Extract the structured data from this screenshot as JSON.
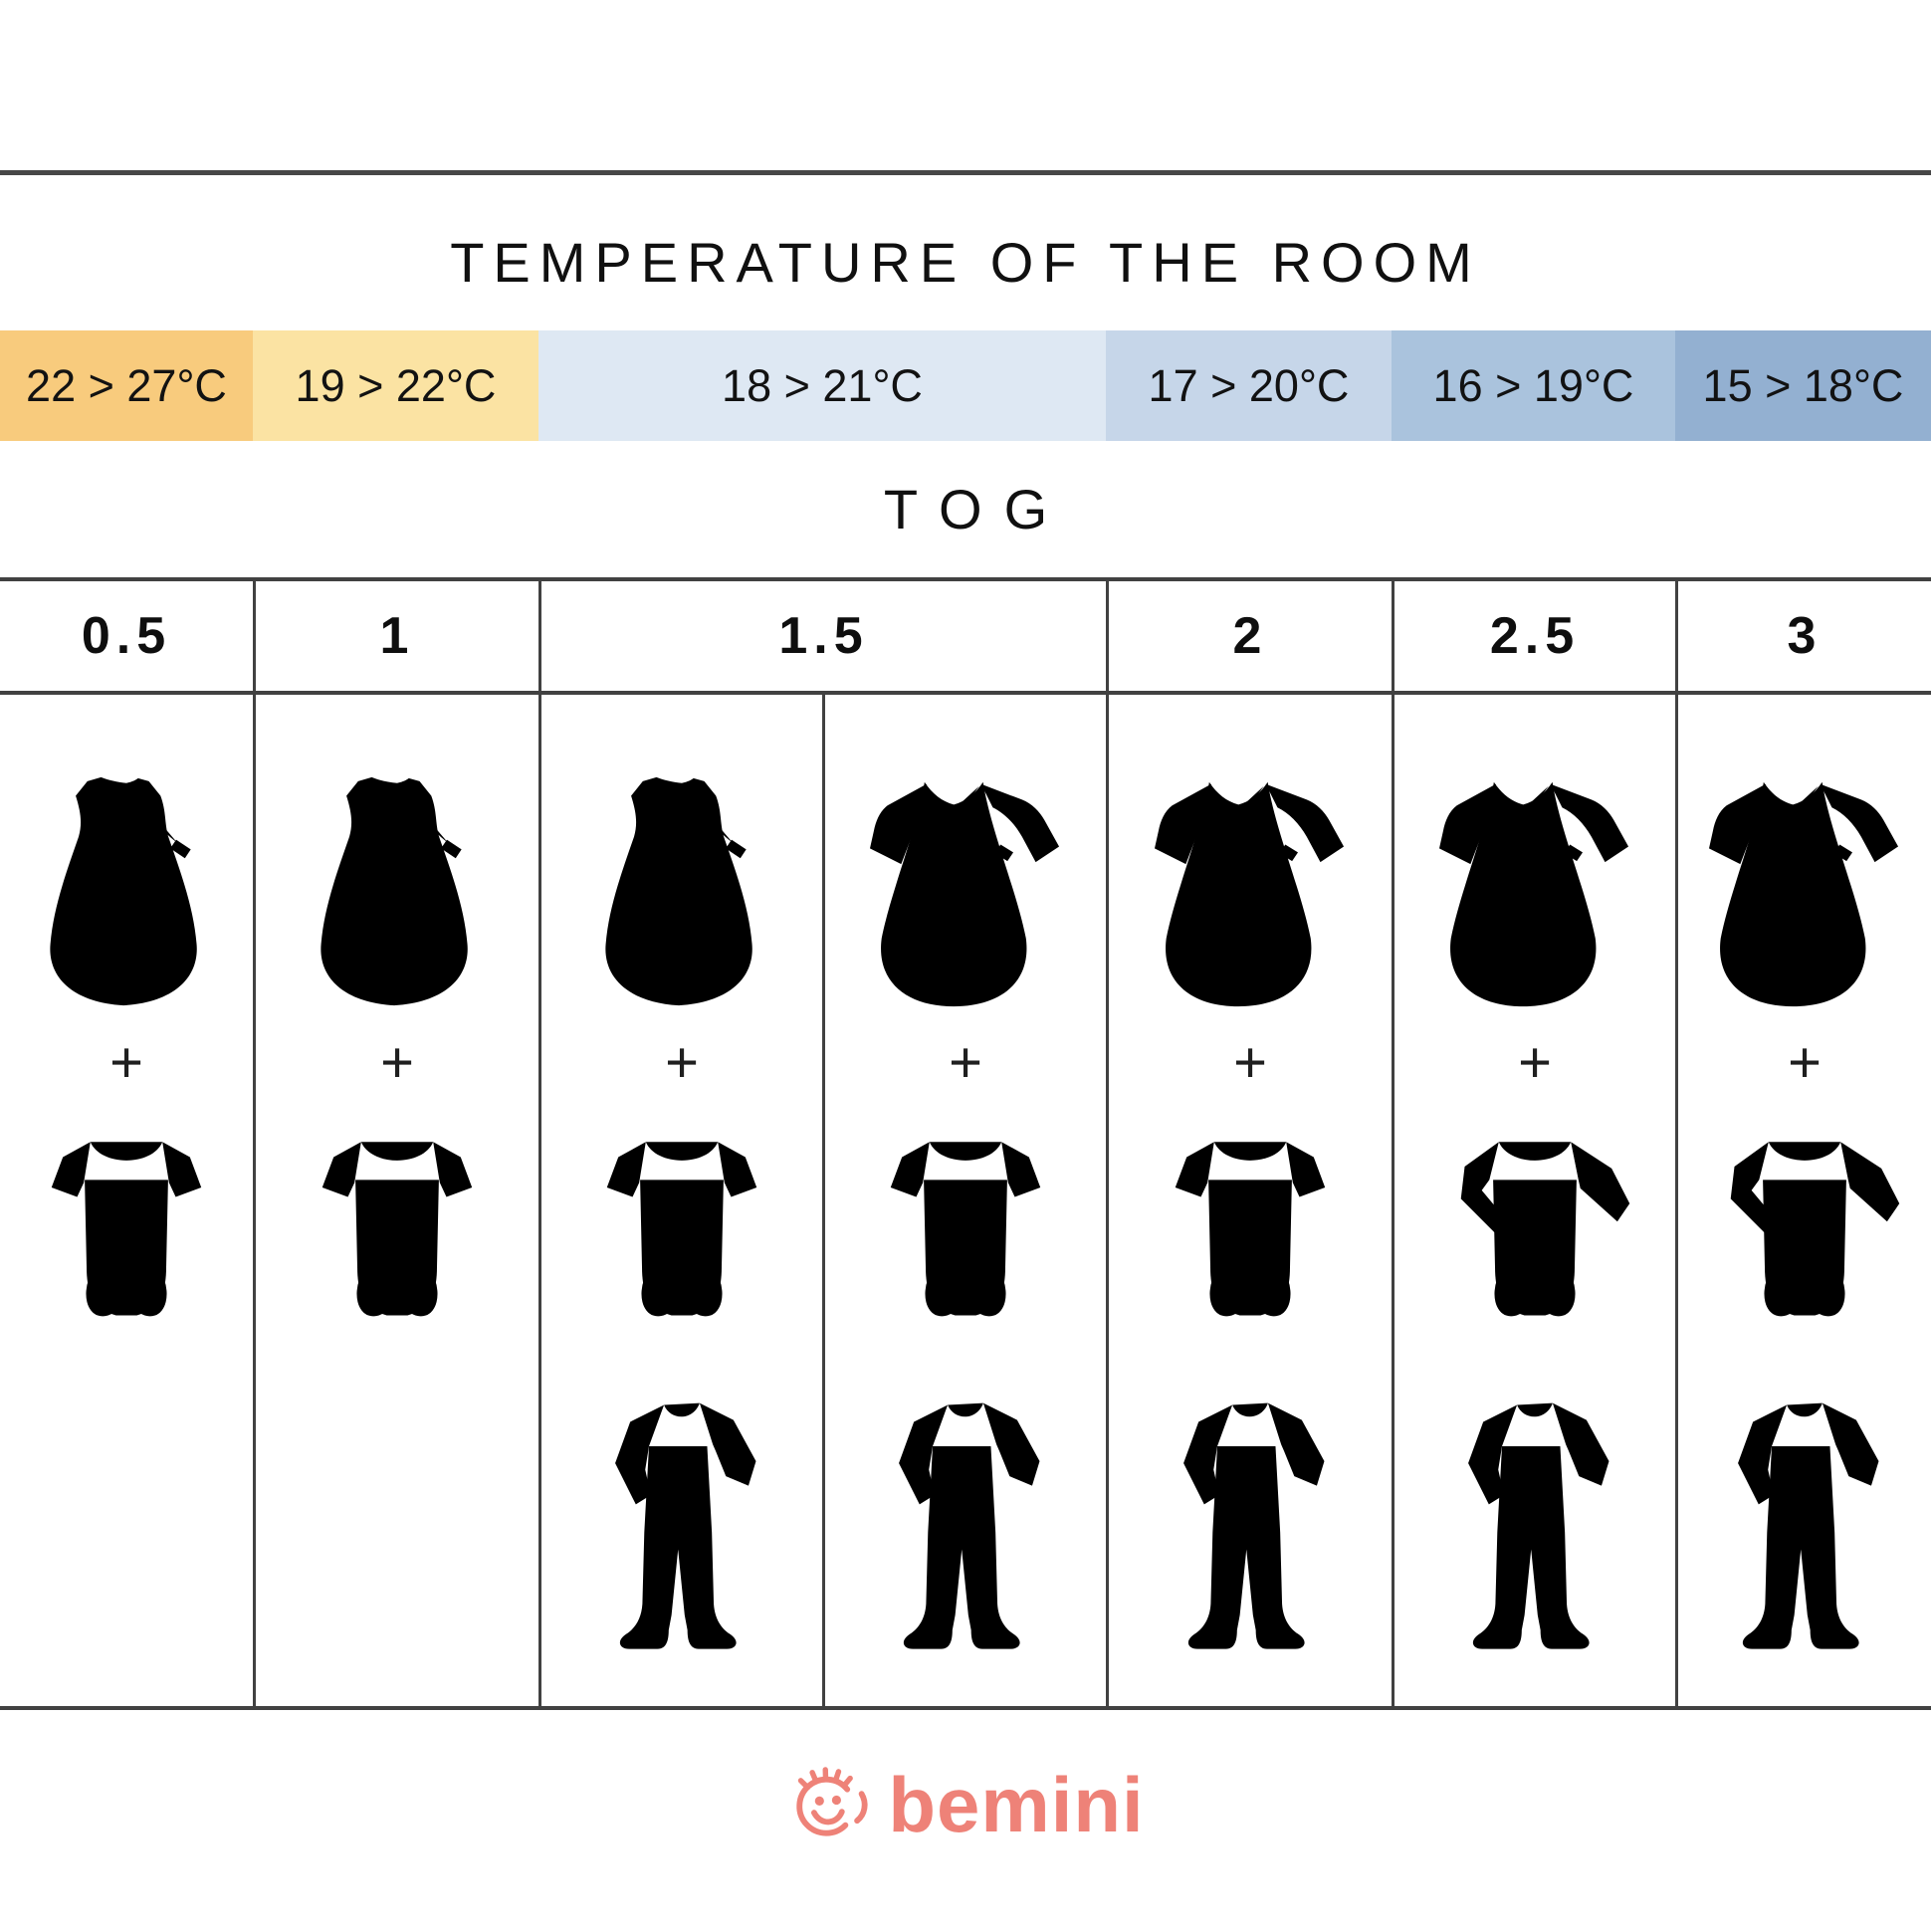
{
  "title": "TEMPERATURE OF THE ROOM",
  "tog_label": "TOG",
  "plus_sign": "+",
  "temperature_bands": [
    {
      "range": "22 > 27°C",
      "color": "#f8cb7d"
    },
    {
      "range": "19 > 22°C",
      "color": "#fbe3a3"
    },
    {
      "range": "18 > 21°C",
      "color": "#dee8f3"
    },
    {
      "range": "17 > 20°C",
      "color": "#c6d6e9"
    },
    {
      "range": "16 > 19°C",
      "color": "#aac3dd"
    },
    {
      "range": "15 > 18°C",
      "color": "#93b0d1"
    }
  ],
  "tog_values": [
    "0.5",
    "1",
    "1.5",
    "2",
    "2.5",
    "3"
  ],
  "outfit_columns": [
    {
      "tog": "0.5",
      "sleeping_bag": "sleeveless",
      "bodysuit": "short-sleeve",
      "pajamas": false
    },
    {
      "tog": "1",
      "sleeping_bag": "sleeveless",
      "bodysuit": "short-sleeve",
      "pajamas": false
    },
    {
      "tog": "1.5",
      "sleeping_bag": "sleeveless",
      "bodysuit": "short-sleeve",
      "pajamas": true
    },
    {
      "tog": "1.5",
      "sleeping_bag": "long-sleeve",
      "bodysuit": "short-sleeve",
      "pajamas": true
    },
    {
      "tog": "2",
      "sleeping_bag": "long-sleeve",
      "bodysuit": "short-sleeve",
      "pajamas": true
    },
    {
      "tog": "2.5",
      "sleeping_bag": "long-sleeve",
      "bodysuit": "long-sleeve",
      "pajamas": true
    },
    {
      "tog": "3",
      "sleeping_bag": "long-sleeve",
      "bodysuit": "long-sleeve",
      "pajamas": true
    }
  ],
  "brand": {
    "name": "bemini",
    "color": "#ee8278"
  },
  "line_color": "#414141"
}
